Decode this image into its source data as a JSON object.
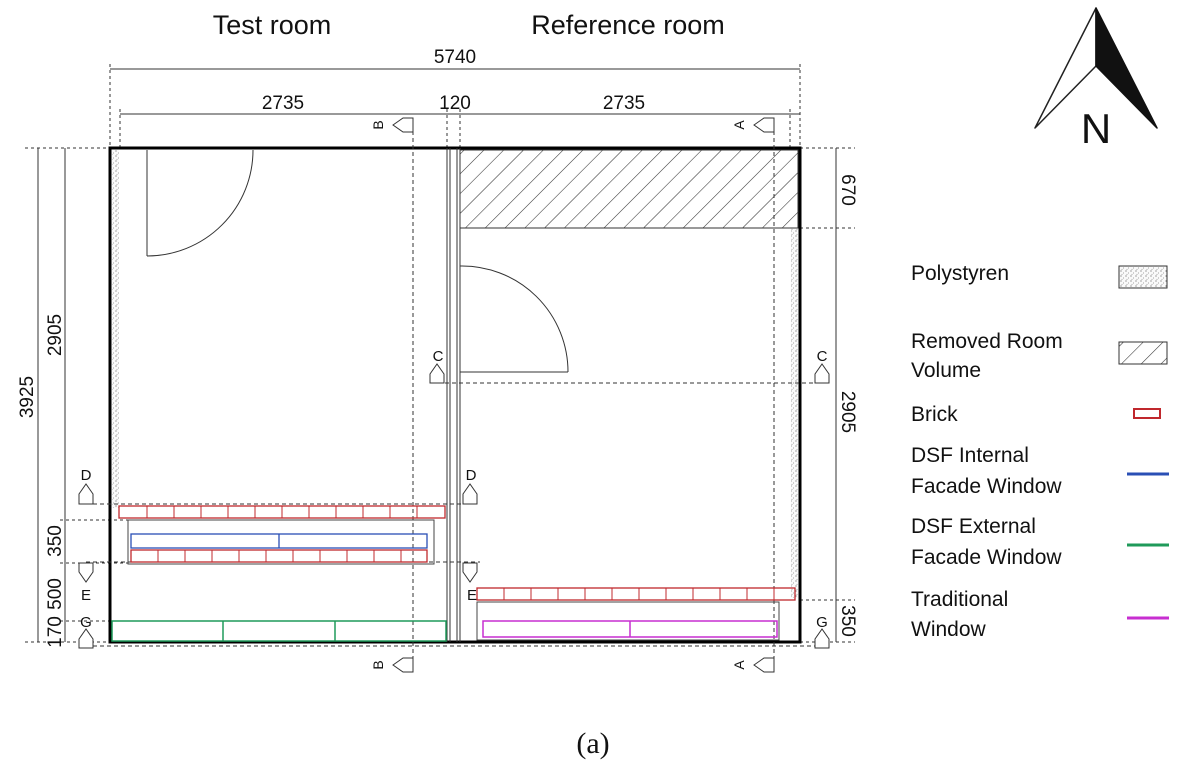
{
  "rooms": {
    "test": "Test room",
    "reference": "Reference room"
  },
  "dims": {
    "total_width": "5740",
    "test_width": "2735",
    "wall": "120",
    "ref_width": "2735",
    "total_height": "3925",
    "test_upper": "2905",
    "test_350": "350",
    "test_500": "500",
    "test_170": "170",
    "ref_670": "670",
    "ref_2905": "2905",
    "ref_350": "350"
  },
  "sections": {
    "a": "A",
    "b": "B",
    "c": "C",
    "d": "D",
    "e": "E",
    "g": "G"
  },
  "north": "N",
  "legend": [
    {
      "label": "Polystyren",
      "swatch": "polystyrene"
    },
    {
      "label": "Removed Room Volume",
      "swatch": "hatch"
    },
    {
      "label": "Brick",
      "swatch": "brick",
      "color": "#c0282d"
    },
    {
      "label": "DSF Internal Facade Window",
      "swatch": "line",
      "color": "#2a4fb5"
    },
    {
      "label": "DSF External Facade Window",
      "swatch": "line",
      "color": "#1f9a5a"
    },
    {
      "label": "Traditional Window",
      "swatch": "line",
      "color": "#c72ed0"
    }
  ],
  "caption": "(a)"
}
